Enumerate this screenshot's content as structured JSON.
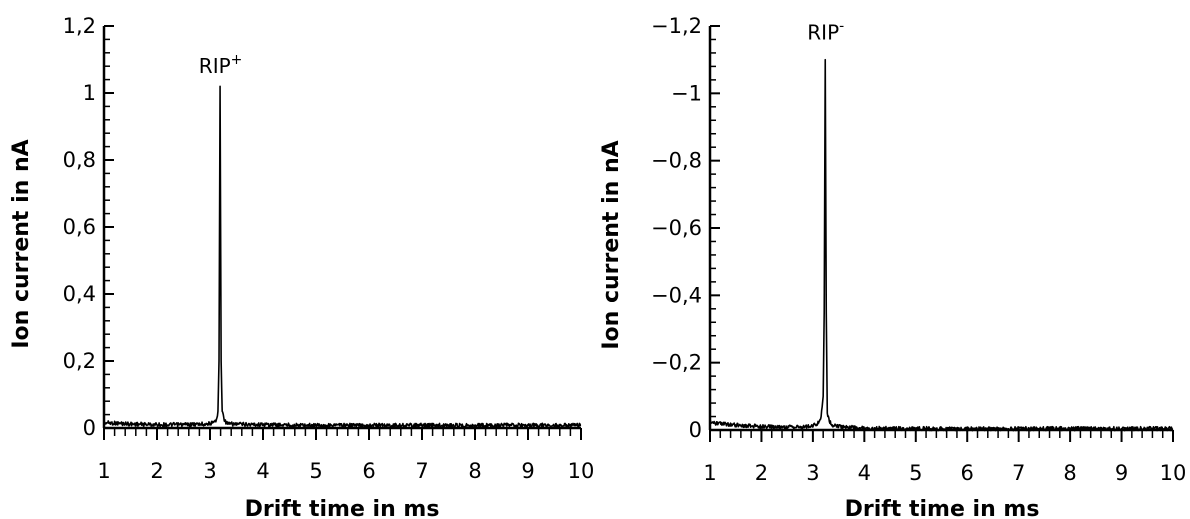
{
  "colors": {
    "line": "#000000",
    "background": "#ffffff"
  },
  "chart_data": [
    {
      "type": "line",
      "title": "",
      "xlabel": "Drift time in ms",
      "ylabel": "Ion current in nA",
      "xlim": [
        1,
        10
      ],
      "ylim": [
        0,
        1.2
      ],
      "x_ticks": [
        "1",
        "2",
        "3",
        "4",
        "5",
        "6",
        "7",
        "8",
        "9",
        "10"
      ],
      "y_ticks": [
        "0",
        "0,2",
        "0,4",
        "0,6",
        "0,8",
        "1",
        "1,2"
      ],
      "grid": false,
      "annotation": {
        "text": "RIP",
        "superscript": "+",
        "x": 3.2,
        "y": 1.06
      },
      "series": [
        {
          "points": [
            [
              1.0,
              0.02
            ],
            [
              1.02,
              0.016
            ],
            [
              1.5,
              0.012
            ],
            [
              2.0,
              0.01
            ],
            [
              2.5,
              0.01
            ],
            [
              2.9,
              0.012
            ],
            [
              3.05,
              0.015
            ],
            [
              3.12,
              0.025
            ],
            [
              3.15,
              0.05
            ],
            [
              3.17,
              0.2
            ],
            [
              3.19,
              1.02
            ],
            [
              3.21,
              0.2
            ],
            [
              3.23,
              0.05
            ],
            [
              3.28,
              0.02
            ],
            [
              3.35,
              0.012
            ],
            [
              4.0,
              0.01
            ],
            [
              5.0,
              0.008
            ],
            [
              6.0,
              0.008
            ],
            [
              7.0,
              0.008
            ],
            [
              8.0,
              0.008
            ],
            [
              9.0,
              0.008
            ],
            [
              10.0,
              0.008
            ]
          ]
        }
      ]
    },
    {
      "type": "line",
      "title": "",
      "xlabel": "Drift time in ms",
      "ylabel": "Ion current in nA",
      "xlim": [
        1,
        10
      ],
      "ylim": [
        0,
        -1.2
      ],
      "x_ticks": [
        "1",
        "2",
        "3",
        "4",
        "5",
        "6",
        "7",
        "8",
        "9",
        "10"
      ],
      "y_ticks": [
        "0",
        "−0,2",
        "−0,4",
        "−0,6",
        "−0,8",
        "−1",
        "−1,2"
      ],
      "grid": false,
      "annotation": {
        "text": "RIP",
        "superscript": "-",
        "x": 3.25,
        "y": -1.16
      },
      "series": [
        {
          "points": [
            [
              1.0,
              -0.025
            ],
            [
              1.02,
              -0.02
            ],
            [
              1.5,
              -0.015
            ],
            [
              2.0,
              -0.01
            ],
            [
              2.5,
              -0.008
            ],
            [
              2.9,
              -0.01
            ],
            [
              3.05,
              -0.015
            ],
            [
              3.12,
              -0.025
            ],
            [
              3.16,
              -0.04
            ],
            [
              3.2,
              -0.1
            ],
            [
              3.22,
              -0.35
            ],
            [
              3.24,
              -1.1
            ],
            [
              3.26,
              -0.35
            ],
            [
              3.28,
              -0.05
            ],
            [
              3.32,
              -0.025
            ],
            [
              3.4,
              -0.012
            ],
            [
              4.0,
              -0.005
            ],
            [
              5.0,
              -0.004
            ],
            [
              6.0,
              -0.004
            ],
            [
              7.0,
              -0.004
            ],
            [
              8.0,
              -0.004
            ],
            [
              9.0,
              -0.004
            ],
            [
              10.0,
              -0.004
            ]
          ]
        }
      ]
    }
  ]
}
